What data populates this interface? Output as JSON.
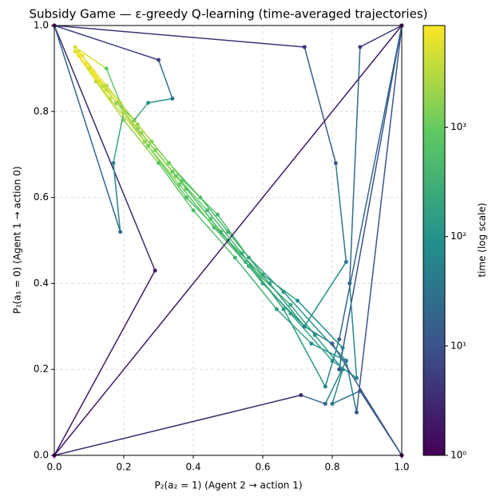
{
  "chart_data": {
    "type": "trajectory",
    "title": "Subsidy Game — ε-greedy Q-learning (time-averaged trajectories)",
    "x_label": "P₂(a₂ = 1)  (Agent 2 → action 1)",
    "y_label": "P₁(a₁ = 0)  (Agent 1 → action 0)",
    "colorbar_label": "time (log scale)",
    "colormap": "viridis",
    "clim": [
      1,
      8500
    ],
    "cticks": [
      {
        "value": 1,
        "label": "10⁰"
      },
      {
        "value": 10,
        "label": "10¹"
      },
      {
        "value": 100,
        "label": "10²"
      },
      {
        "value": 1000,
        "label": "10³"
      }
    ],
    "xlim": [
      0,
      1
    ],
    "ylim": [
      0,
      1
    ],
    "xticks": [
      {
        "value": 0,
        "label": "0.0"
      },
      {
        "value": 0.2,
        "label": "0.2"
      },
      {
        "value": 0.4,
        "label": "0.4"
      },
      {
        "value": 0.6,
        "label": "0.6"
      },
      {
        "value": 0.8,
        "label": "0.8"
      },
      {
        "value": 1,
        "label": "1.0"
      }
    ],
    "yticks": [
      {
        "value": 0,
        "label": "0.0"
      },
      {
        "value": 0.2,
        "label": "0.2"
      },
      {
        "value": 0.4,
        "label": "0.4"
      },
      {
        "value": 0.6,
        "label": "0.6"
      },
      {
        "value": 0.8,
        "label": "0.8"
      },
      {
        "value": 1,
        "label": "1.0"
      }
    ],
    "grid": true,
    "series": [
      {
        "x": [
          1.0,
          0.88,
          0.8,
          0.83,
          0.75,
          0.68,
          0.55,
          0.45,
          0.35,
          0.25,
          0.15,
          0.08
        ],
        "y": [
          0.0,
          0.15,
          0.12,
          0.2,
          0.28,
          0.35,
          0.45,
          0.55,
          0.65,
          0.75,
          0.85,
          0.93
        ],
        "t": [
          1,
          8,
          30,
          60,
          120,
          200,
          350,
          600,
          1000,
          1800,
          3500,
          7000
        ]
      },
      {
        "x": [
          0.0,
          0.71,
          0.78,
          0.84,
          0.74,
          0.64,
          0.52,
          0.4,
          0.3,
          0.2,
          0.12,
          0.06
        ],
        "y": [
          0.0,
          0.14,
          0.12,
          0.22,
          0.26,
          0.34,
          0.46,
          0.57,
          0.68,
          0.78,
          0.87,
          0.94
        ],
        "t": [
          1,
          3,
          20,
          50,
          100,
          180,
          320,
          550,
          900,
          1700,
          3200,
          6500
        ]
      },
      {
        "x": [
          1.0,
          0.82,
          0.83,
          0.7,
          0.6,
          0.5,
          0.42,
          0.33,
          0.24,
          0.15,
          0.07
        ],
        "y": [
          1.0,
          0.2,
          0.25,
          0.36,
          0.42,
          0.52,
          0.6,
          0.68,
          0.77,
          0.86,
          0.94
        ],
        "t": [
          1,
          10,
          40,
          90,
          160,
          300,
          500,
          850,
          1500,
          3000,
          6000
        ]
      },
      {
        "x": [
          0.0,
          0.72,
          0.81,
          0.84,
          0.72,
          0.62,
          0.5,
          0.38,
          0.27,
          0.18,
          0.09
        ],
        "y": [
          1.0,
          0.95,
          0.68,
          0.45,
          0.3,
          0.4,
          0.5,
          0.6,
          0.72,
          0.82,
          0.91
        ],
        "t": [
          1,
          4,
          15,
          40,
          80,
          150,
          280,
          500,
          900,
          2000,
          4500
        ]
      },
      {
        "x": [
          0.0,
          0.29,
          0.0,
          0.19,
          0.17,
          0.2,
          0.15,
          0.06
        ],
        "y": [
          0.0,
          0.43,
          1.0,
          0.52,
          0.68,
          0.8,
          0.9,
          0.95
        ],
        "t": [
          1,
          2,
          3,
          20,
          60,
          200,
          900,
          5000
        ]
      },
      {
        "x": [
          1.0,
          0.88,
          0.85,
          0.87,
          0.8,
          0.68,
          0.56,
          0.46,
          0.36,
          0.26,
          0.16,
          0.09
        ],
        "y": [
          1.0,
          0.95,
          0.4,
          0.18,
          0.22,
          0.33,
          0.44,
          0.53,
          0.63,
          0.73,
          0.83,
          0.91
        ],
        "t": [
          1,
          5,
          25,
          60,
          110,
          190,
          330,
          560,
          950,
          1800,
          3600,
          7000
        ]
      },
      {
        "x": [
          0.0,
          0.3,
          0.34,
          0.27,
          0.23,
          0.18,
          0.14,
          0.1,
          0.06
        ],
        "y": [
          1.0,
          0.92,
          0.83,
          0.82,
          0.78,
          0.82,
          0.86,
          0.9,
          0.94
        ],
        "t": [
          1,
          6,
          30,
          100,
          300,
          700,
          1500,
          3000,
          6000
        ]
      },
      {
        "x": [
          1.0,
          0.87,
          0.84,
          0.66,
          0.56,
          0.47,
          0.37,
          0.28,
          0.19,
          0.11
        ],
        "y": [
          1.0,
          0.1,
          0.22,
          0.38,
          0.46,
          0.56,
          0.64,
          0.73,
          0.82,
          0.89
        ],
        "t": [
          1,
          12,
          45,
          110,
          220,
          420,
          800,
          1500,
          3000,
          6000
        ]
      },
      {
        "x": [
          1.0,
          0.8,
          0.72,
          0.6,
          0.48,
          0.38,
          0.29,
          0.2,
          0.13
        ],
        "y": [
          0.0,
          0.26,
          0.3,
          0.4,
          0.52,
          0.62,
          0.71,
          0.8,
          0.87
        ],
        "t": [
          1,
          15,
          60,
          150,
          330,
          650,
          1200,
          2500,
          5000
        ]
      },
      {
        "x": [
          0.0,
          1.0,
          0.82,
          0.78,
          0.66,
          0.54,
          0.44,
          0.34,
          0.24,
          0.14,
          0.07
        ],
        "y": [
          0.0,
          1.0,
          0.27,
          0.16,
          0.34,
          0.47,
          0.57,
          0.66,
          0.76,
          0.86,
          0.93
        ],
        "t": [
          1,
          2,
          18,
          55,
          130,
          260,
          480,
          900,
          1700,
          3400,
          6800
        ]
      }
    ]
  }
}
